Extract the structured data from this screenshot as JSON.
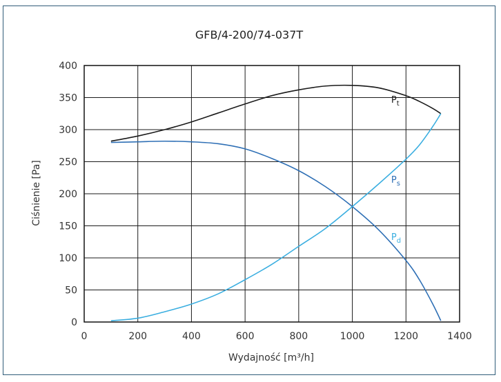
{
  "chart_data": {
    "type": "line",
    "title": "GFB/4-200/74-037T",
    "xlabel": "Wydajność [m³/h]",
    "ylabel": "Ciśnienie [Pa]",
    "xlim": [
      0,
      1400
    ],
    "ylim": [
      0,
      400
    ],
    "x_ticks": [
      0,
      200,
      400,
      600,
      800,
      1000,
      1200,
      1400
    ],
    "y_ticks": [
      0,
      50,
      100,
      150,
      200,
      250,
      300,
      350,
      400
    ],
    "grid": true,
    "legend": "inline labels next to curves",
    "series": [
      {
        "name": "Pt",
        "label_main": "P",
        "label_sub": "t",
        "color": "#1a1a1a",
        "points": [
          [
            100,
            282
          ],
          [
            200,
            290
          ],
          [
            300,
            300
          ],
          [
            400,
            312
          ],
          [
            500,
            326
          ],
          [
            600,
            340
          ],
          [
            700,
            353
          ],
          [
            800,
            362
          ],
          [
            900,
            368
          ],
          [
            1000,
            369
          ],
          [
            1100,
            365
          ],
          [
            1200,
            353
          ],
          [
            1250,
            344
          ],
          [
            1300,
            333
          ],
          [
            1330,
            325
          ]
        ]
      },
      {
        "name": "Ps",
        "label_main": "P",
        "label_sub": "s",
        "color": "#2e6fb5",
        "points": [
          [
            100,
            280
          ],
          [
            200,
            281
          ],
          [
            300,
            282
          ],
          [
            400,
            281
          ],
          [
            500,
            278
          ],
          [
            600,
            270
          ],
          [
            700,
            255
          ],
          [
            800,
            236
          ],
          [
            900,
            211
          ],
          [
            1000,
            180
          ],
          [
            1100,
            143
          ],
          [
            1200,
            96
          ],
          [
            1250,
            66
          ],
          [
            1300,
            28
          ],
          [
            1330,
            2
          ]
        ]
      },
      {
        "name": "Pd",
        "label_main": "P",
        "label_sub": "d",
        "color": "#3aaee0",
        "points": [
          [
            100,
            2
          ],
          [
            200,
            6
          ],
          [
            300,
            16
          ],
          [
            400,
            28
          ],
          [
            500,
            44
          ],
          [
            600,
            66
          ],
          [
            700,
            90
          ],
          [
            800,
            118
          ],
          [
            900,
            146
          ],
          [
            1000,
            180
          ],
          [
            1100,
            216
          ],
          [
            1200,
            254
          ],
          [
            1250,
            276
          ],
          [
            1300,
            305
          ],
          [
            1330,
            325
          ]
        ]
      }
    ],
    "series_label_positions": [
      [
        1145,
        342
      ],
      [
        1145,
        217
      ],
      [
        1145,
        128
      ]
    ]
  }
}
